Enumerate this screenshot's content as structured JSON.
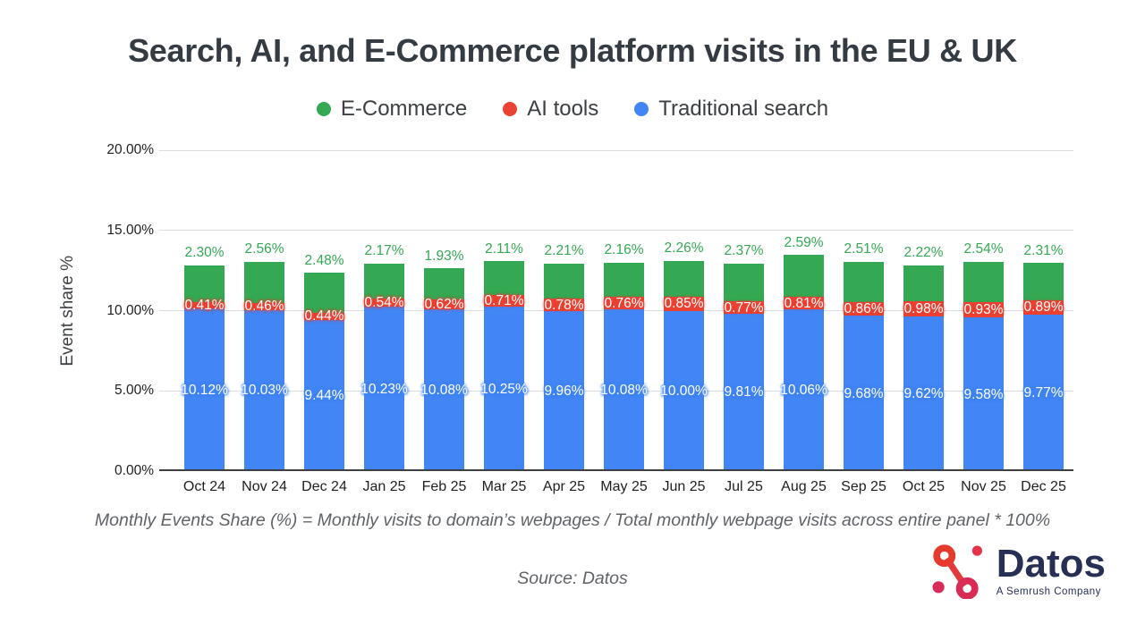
{
  "title": "Search, AI, and E-Commerce platform visits in the EU & UK",
  "legend": [
    {
      "label": "E-Commerce",
      "color": "#34a853"
    },
    {
      "label": "AI tools",
      "color": "#ea4335"
    },
    {
      "label": "Traditional search",
      "color": "#4285f4"
    }
  ],
  "footnote": "Monthly Events Share (%) = Monthly visits to domain’s webpages / Total monthly webpage visits across entire panel * 100%",
  "source": "Source: Datos",
  "logo": {
    "name": "Datos",
    "tagline": "A Semrush Company"
  },
  "chart_data": {
    "type": "bar",
    "stacked": true,
    "title": "Search, AI, and E-Commerce platform visits in the EU & UK",
    "xlabel": "",
    "ylabel": "Event share %",
    "ylim": [
      0,
      20
    ],
    "yticks": [
      "0.00%",
      "5.00%",
      "10.00%",
      "15.00%",
      "20.00%"
    ],
    "grid": true,
    "legend_position": "top",
    "categories": [
      "Oct 24",
      "Nov 24",
      "Dec 24",
      "Jan 25",
      "Feb 25",
      "Mar 25",
      "Apr 25",
      "May 25",
      "Jun 25",
      "Jul 25",
      "Aug 25",
      "Sep 25",
      "Oct 25",
      "Nov 25",
      "Dec 25"
    ],
    "series": [
      {
        "name": "Traditional search",
        "color": "#4285f4",
        "values": [
          10.12,
          10.03,
          9.44,
          10.23,
          10.08,
          10.25,
          9.96,
          10.08,
          10.0,
          9.81,
          10.06,
          9.68,
          9.62,
          9.58,
          9.77
        ]
      },
      {
        "name": "AI tools",
        "color": "#ea4335",
        "values": [
          0.41,
          0.46,
          0.44,
          0.54,
          0.62,
          0.71,
          0.78,
          0.76,
          0.85,
          0.77,
          0.81,
          0.86,
          0.98,
          0.93,
          0.89
        ]
      },
      {
        "name": "E-Commerce",
        "color": "#34a853",
        "values": [
          2.3,
          2.56,
          2.48,
          2.17,
          1.93,
          2.11,
          2.21,
          2.16,
          2.26,
          2.37,
          2.59,
          2.51,
          2.22,
          2.54,
          2.31
        ]
      }
    ]
  }
}
